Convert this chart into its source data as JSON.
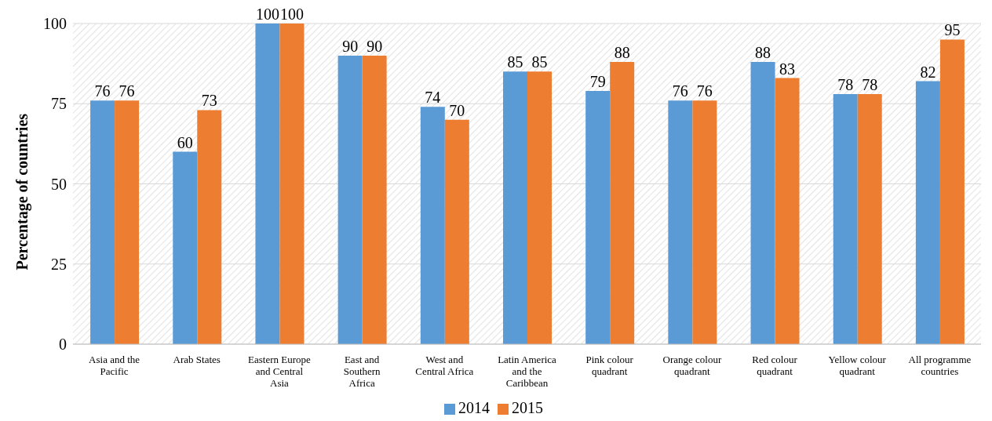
{
  "chart_data": {
    "type": "bar",
    "ylabel": "Percentage of countries",
    "categories": [
      "Asia and the Pacific",
      "Arab States",
      "Eastern Europe and Central Asia",
      "East and Southern Africa",
      "West and Central Africa",
      "Latin America and the Caribbean",
      "Pink colour quadrant",
      "Orange colour quadrant",
      "Red colour quadrant",
      "Yellow colour quadrant",
      "All programme countries"
    ],
    "series": [
      {
        "name": "2014",
        "color": "#5b9bd5",
        "values": [
          76,
          60,
          100,
          90,
          74,
          85,
          79,
          76,
          88,
          78,
          82
        ]
      },
      {
        "name": "2015",
        "color": "#ed7d31",
        "values": [
          76,
          73,
          100,
          90,
          70,
          85,
          88,
          76,
          83,
          78,
          95
        ]
      }
    ],
    "ylim": [
      0,
      100
    ],
    "yticks": [
      0,
      25,
      50,
      75,
      100
    ],
    "grid": "y",
    "legend": "bottom",
    "data_labels": true
  }
}
